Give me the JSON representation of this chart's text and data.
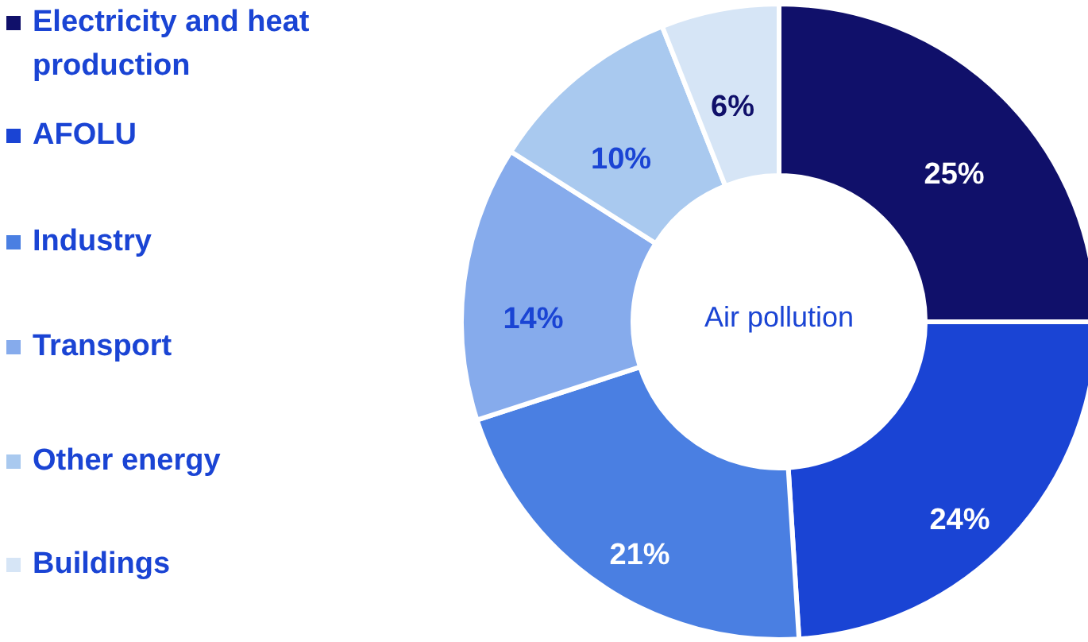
{
  "chart_data": {
    "type": "donut",
    "categories": [
      "Electricity and heat production",
      "AFOLU",
      "Industry",
      "Transport",
      "Other energy",
      "Buildings"
    ],
    "values": [
      25,
      24,
      21,
      14,
      10,
      6
    ],
    "colors": [
      "#10106a",
      "#1a44d4",
      "#4a7fe2",
      "#86abec",
      "#a9c9ef",
      "#d6e5f6"
    ],
    "value_labels": [
      "25%",
      "24%",
      "21%",
      "14%",
      "10%",
      "6%"
    ],
    "legend": "left",
    "annotations": [
      "Air pollution"
    ]
  }
}
